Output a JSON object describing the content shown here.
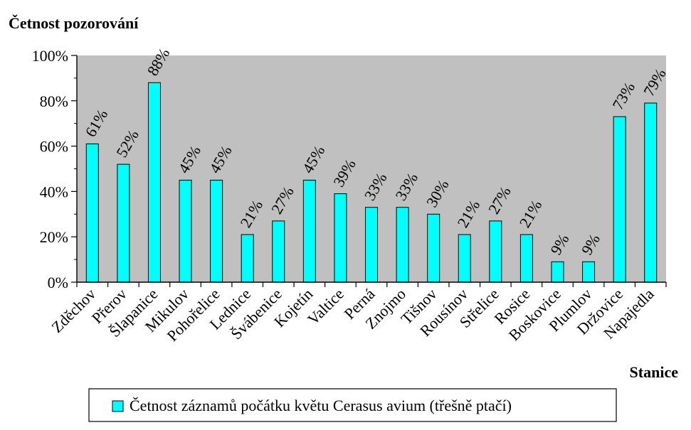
{
  "chart_data": {
    "type": "bar",
    "ylabel": "Četnost pozorování",
    "xlabel": "Stanice",
    "ylim": [
      0,
      100
    ],
    "yticks": [
      0,
      20,
      40,
      60,
      80,
      100
    ],
    "ytick_labels": [
      "0%",
      "20%",
      "40%",
      "60%",
      "80%",
      "100%"
    ],
    "categories": [
      "Zděchov",
      "Přerov",
      "Šlapanice",
      "Mikulov",
      "Pohořelice",
      "Lednice",
      "Švábenice",
      "Kojetín",
      "Valtice",
      "Perná",
      "Znojmo",
      "Tišnov",
      "Rousínov",
      "Střelice",
      "Rosice",
      "Boskovice",
      "Plumlov",
      "Držovice",
      "Napajedla"
    ],
    "series": [
      {
        "name": "Četnost záznamů počátku květu Cerasus avium (třešně ptačí)",
        "values": [
          61,
          52,
          88,
          45,
          45,
          21,
          27,
          45,
          39,
          33,
          33,
          30,
          21,
          27,
          21,
          9,
          9,
          73,
          79
        ],
        "labels": [
          "61%",
          "52%",
          "88%",
          "45%",
          "45%",
          "21%",
          "27%",
          "45%",
          "39%",
          "33%",
          "33%",
          "30%",
          "21%",
          "27%",
          "21%",
          "9%",
          "9%",
          "73%",
          "79%"
        ]
      }
    ],
    "bar_color": "#00FFFF",
    "plot_background": "#C0C0C0",
    "grid": false,
    "legend_position": "bottom"
  }
}
